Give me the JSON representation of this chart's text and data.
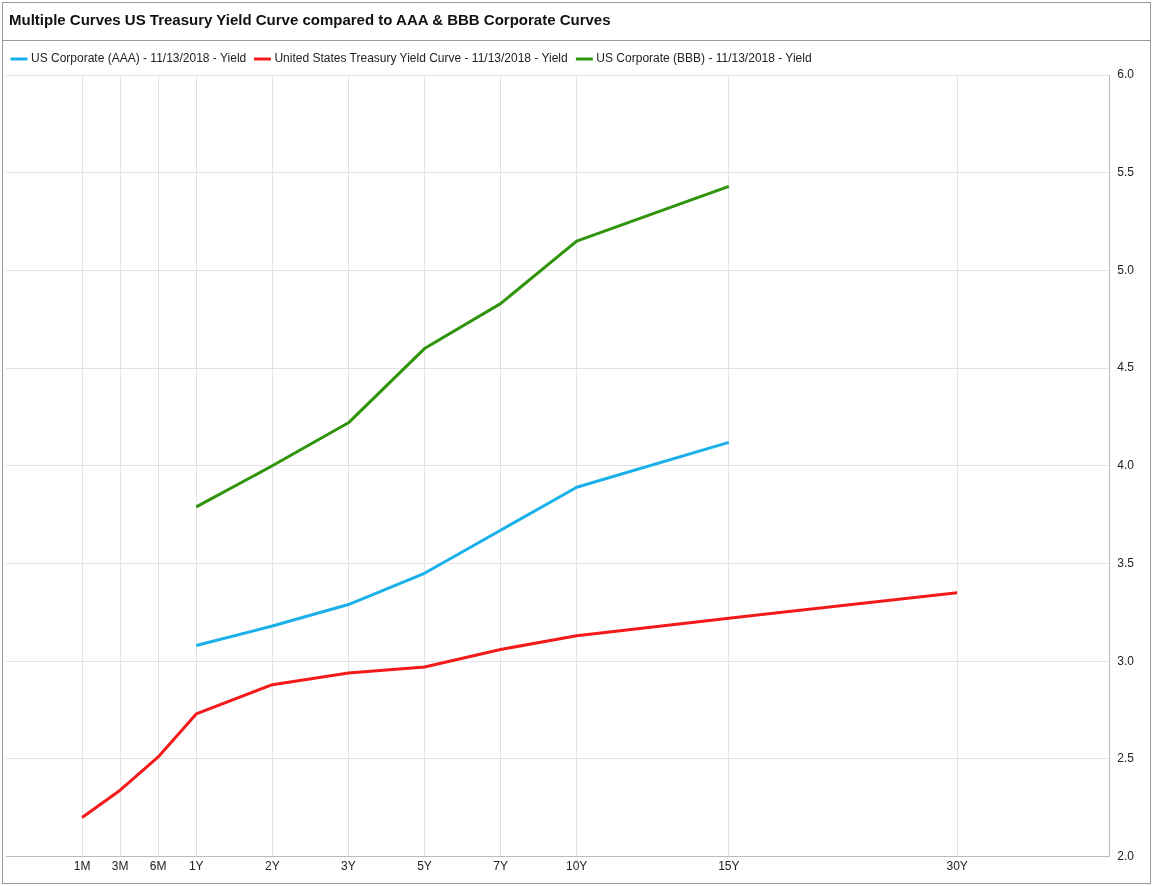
{
  "chart_data": {
    "type": "line",
    "title": "Multiple Curves US Treasury Yield Curve compared to AAA & BBB Corporate Curves",
    "categories": [
      null,
      null,
      "1M",
      "3M",
      "6M",
      "1Y",
      null,
      "2Y",
      null,
      "3Y",
      null,
      "5Y",
      null,
      "7Y",
      null,
      "10Y",
      null,
      null,
      null,
      "15Y",
      null,
      null,
      null,
      null,
      null,
      "30Y",
      null,
      null,
      null,
      null
    ],
    "series": [
      {
        "name": "US Corporate (AAA) - 11/13/2018 - Yield",
        "color": "#1ab0ea",
        "values": [
          null,
          null,
          null,
          null,
          null,
          3.08,
          null,
          3.18,
          null,
          3.29,
          null,
          3.45,
          null,
          3.67,
          null,
          3.89,
          null,
          null,
          null,
          4.12,
          null,
          null,
          null,
          null,
          null,
          null,
          null,
          null,
          null,
          null
        ]
      },
      {
        "name": "United States Treasury Yield Curve - 11/13/2018 - Yield",
        "color": "#f41a1a",
        "values": [
          null,
          null,
          2.2,
          2.34,
          2.51,
          2.73,
          null,
          2.88,
          null,
          2.94,
          null,
          2.97,
          null,
          3.06,
          null,
          3.13,
          null,
          null,
          null,
          3.22,
          null,
          null,
          null,
          null,
          null,
          3.35,
          null,
          null,
          null,
          null
        ]
      },
      {
        "name": "US Corporate (BBB) - 11/13/2018 - Yield",
        "color": "#2f940c",
        "values": [
          null,
          null,
          null,
          null,
          null,
          3.79,
          null,
          4.0,
          null,
          4.22,
          null,
          4.6,
          null,
          4.83,
          null,
          5.15,
          null,
          null,
          null,
          5.43,
          null,
          null,
          null,
          null,
          null,
          null,
          null,
          null,
          null,
          null
        ]
      }
    ],
    "ylim": [
      2,
      6
    ],
    "yticks": [
      {
        "value": 2,
        "label": "2.0"
      },
      {
        "value": 2.5,
        "label": "2.5"
      },
      {
        "value": 3,
        "label": "3.0"
      },
      {
        "value": 3.5,
        "label": "3.5"
      },
      {
        "value": 4,
        "label": "4.0"
      },
      {
        "value": 4.5,
        "label": "4.5"
      },
      {
        "value": 5,
        "label": "5.0"
      },
      {
        "value": 5.5,
        "label": "5.5"
      },
      {
        "value": 6,
        "label": "6.0"
      }
    ],
    "grid": true,
    "legend": "top left",
    "marker": "none",
    "line_style": "solid"
  }
}
